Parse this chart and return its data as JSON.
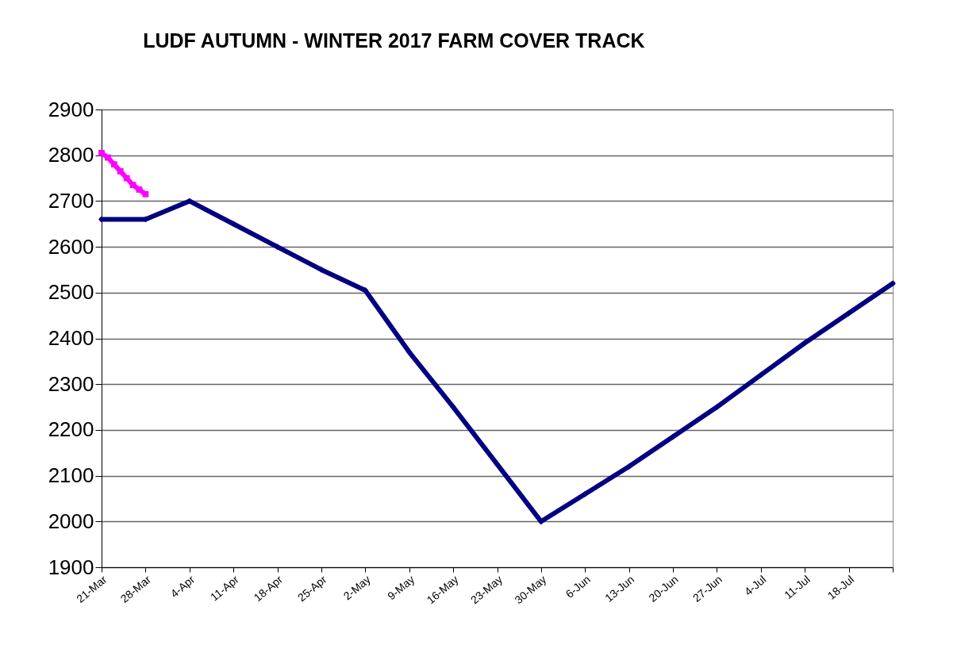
{
  "chart_data": {
    "type": "line",
    "title": "LUDF AUTUMN - WINTER 2017 FARM COVER TRACK",
    "x": [
      "--03-21",
      "--03-28",
      "--04-04",
      "--04-11",
      "--04-18",
      "--04-25",
      "--05-02",
      "--05-09",
      "--05-16",
      "--05-23",
      "--05-30",
      "--06-06",
      "--06-13",
      "--06-20",
      "--06-27",
      "--07-04",
      "--07-11",
      "--07-18",
      "--07-25"
    ],
    "series": [
      {
        "color": "#000080",
        "marker": "diamond",
        "values": [
          2660,
          2660,
          2700,
          2650,
          2600,
          2550,
          2505,
          2370,
          2250,
          2125,
          2000,
          2060,
          2120,
          2185,
          2250,
          2320,
          2390,
          2455,
          2520
        ]
      },
      {
        "color": "#ff00ff",
        "marker": "square",
        "x": [
          "--03-21",
          "--03-22",
          "--03-23",
          "--03-24",
          "--03-25",
          "--03-26",
          "--03-27",
          "--03-28"
        ],
        "values": [
          2805,
          2795,
          2780,
          2765,
          2750,
          2735,
          2725,
          2715
        ]
      }
    ],
    "xlim": [
      "--03-21",
      "--07-25"
    ],
    "xticks": [
      {
        "value": "--03-21",
        "label": "21-Mar"
      },
      {
        "value": "--03-28",
        "label": "28-Mar"
      },
      {
        "value": "--04-04",
        "label": "4-Apr"
      },
      {
        "value": "--04-11",
        "label": "11-Apr"
      },
      {
        "value": "--04-18",
        "label": "18-Apr"
      },
      {
        "value": "--04-25",
        "label": "25-Apr"
      },
      {
        "value": "--05-02",
        "label": "2-May"
      },
      {
        "value": "--05-09",
        "label": "9-May"
      },
      {
        "value": "--05-16",
        "label": "16-May"
      },
      {
        "value": "--05-23",
        "label": "23-May"
      },
      {
        "value": "--05-30",
        "label": "30-May"
      },
      {
        "value": "--06-06",
        "label": "6-Jun"
      },
      {
        "value": "--06-13",
        "label": "13-Jun"
      },
      {
        "value": "--06-20",
        "label": "20-Jun"
      },
      {
        "value": "--06-27",
        "label": "27-Jun"
      },
      {
        "value": "--07-04",
        "label": "4-Jul"
      },
      {
        "value": "--07-11",
        "label": "11-Jul"
      },
      {
        "value": "--07-18",
        "label": "18-Jul"
      },
      {
        "value": "--07-25",
        "label": null
      }
    ],
    "ylim": [
      1900,
      2900
    ],
    "yticks": [
      1900,
      2000,
      2100,
      2200,
      2300,
      2400,
      2500,
      2600,
      2700,
      2800,
      2900
    ],
    "grid": "y"
  }
}
